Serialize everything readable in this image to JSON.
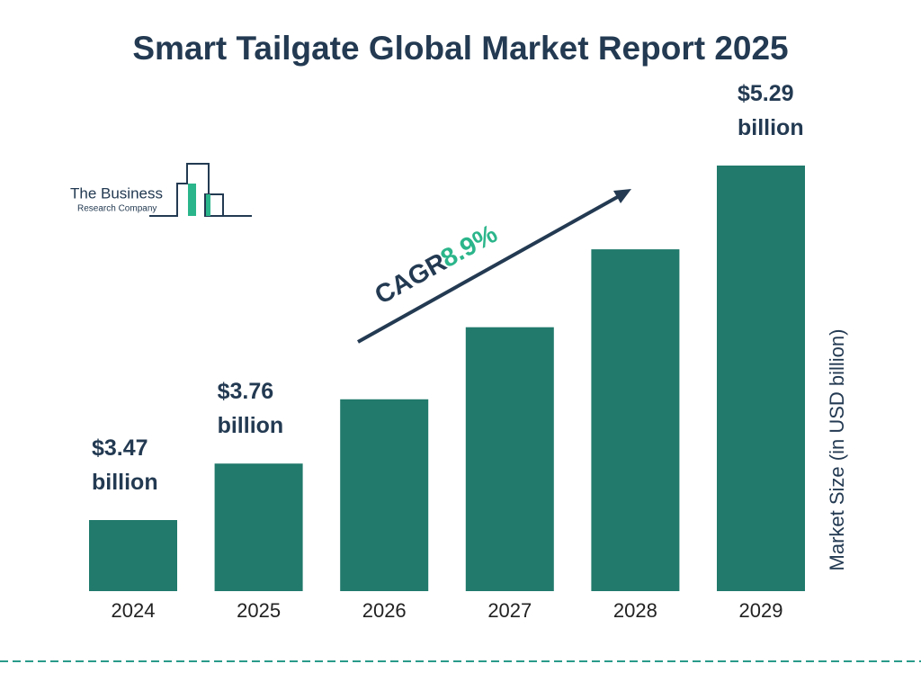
{
  "chart_data": {
    "type": "bar",
    "title": "Smart Tailgate Global Market Report 2025",
    "categories": [
      "2024",
      "2025",
      "2026",
      "2027",
      "2028",
      "2029"
    ],
    "values": [
      3.47,
      3.76,
      4.09,
      4.46,
      4.86,
      5.29
    ],
    "value_labels": [
      "$3.47 billion",
      "$3.76 billion",
      null,
      null,
      null,
      "$5.29 billion"
    ],
    "color": "#217a6c",
    "y_label": "Market Size (in USD billion)",
    "annotation": {
      "text": "CAGR",
      "value": "8.9%"
    },
    "logo": {
      "line1": "The Business",
      "line2": "Research Company"
    }
  }
}
